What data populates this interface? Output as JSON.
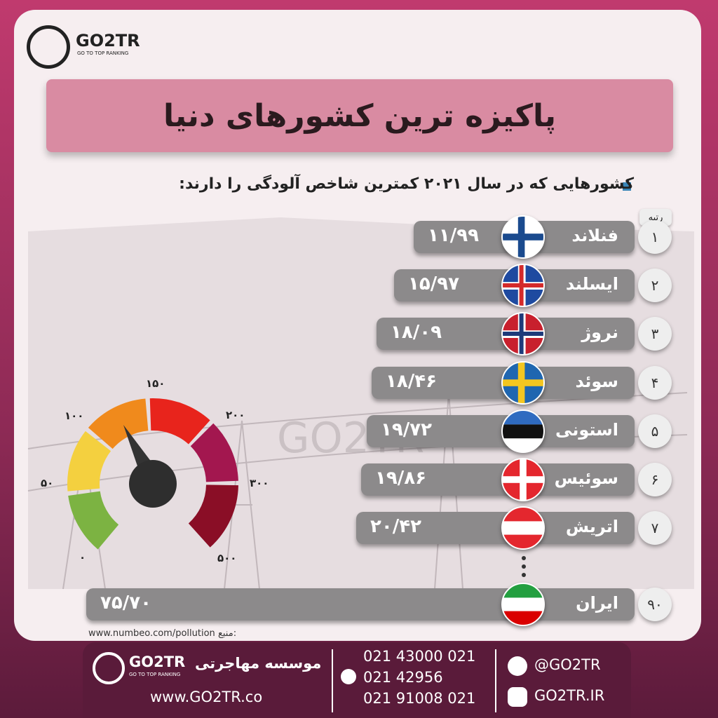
{
  "logo": {
    "name": "GO2TR",
    "tagline": "GO TO TOP RANKING"
  },
  "title": "پاکیزه ترین کشورهای دنیا",
  "subtitle": "کشورهایی که در سال ۲۰۲۱ کمترین شاخص آلودگی را دارند:",
  "rank_header": "رتبه",
  "rows": [
    {
      "rank": "۱",
      "country": "فنلاند",
      "value": "۱۱/۹۹"
    },
    {
      "rank": "۲",
      "country": "ایسلند",
      "value": "۱۵/۹۷"
    },
    {
      "rank": "۳",
      "country": "نروژ",
      "value": "۱۸/۰۹"
    },
    {
      "rank": "۴",
      "country": "سوئد",
      "value": "۱۸/۴۶"
    },
    {
      "rank": "۵",
      "country": "استونی",
      "value": "۱۹/۷۲"
    },
    {
      "rank": "۶",
      "country": "سوئیس",
      "value": "۱۹/۸۶"
    },
    {
      "rank": "۷",
      "country": "اتریش",
      "value": "۲۰/۴۲"
    },
    {
      "rank": "۹۰",
      "country": "ایران",
      "value": "۷۵/۷۰"
    }
  ],
  "gauge_labels": [
    "۰",
    "۵۰",
    "۱۰۰",
    "۱۵۰",
    "۲۰۰",
    "۳۰۰",
    "۵۰۰"
  ],
  "watermark": "GO2TR",
  "source": {
    "label": "منبع:",
    "url": "www.numbeo.com/pollution"
  },
  "footer": {
    "brand": "GO2TR",
    "tagline": "GO TO TOP RANKING",
    "institute": "موسسه مهاجرتی",
    "website": "www.GO2TR.co",
    "phones": [
      "021 43000 021",
      "021 42956",
      "021 91008 021"
    ],
    "telegram": "@GO2TR",
    "instagram": "GO2TR.IR"
  }
}
